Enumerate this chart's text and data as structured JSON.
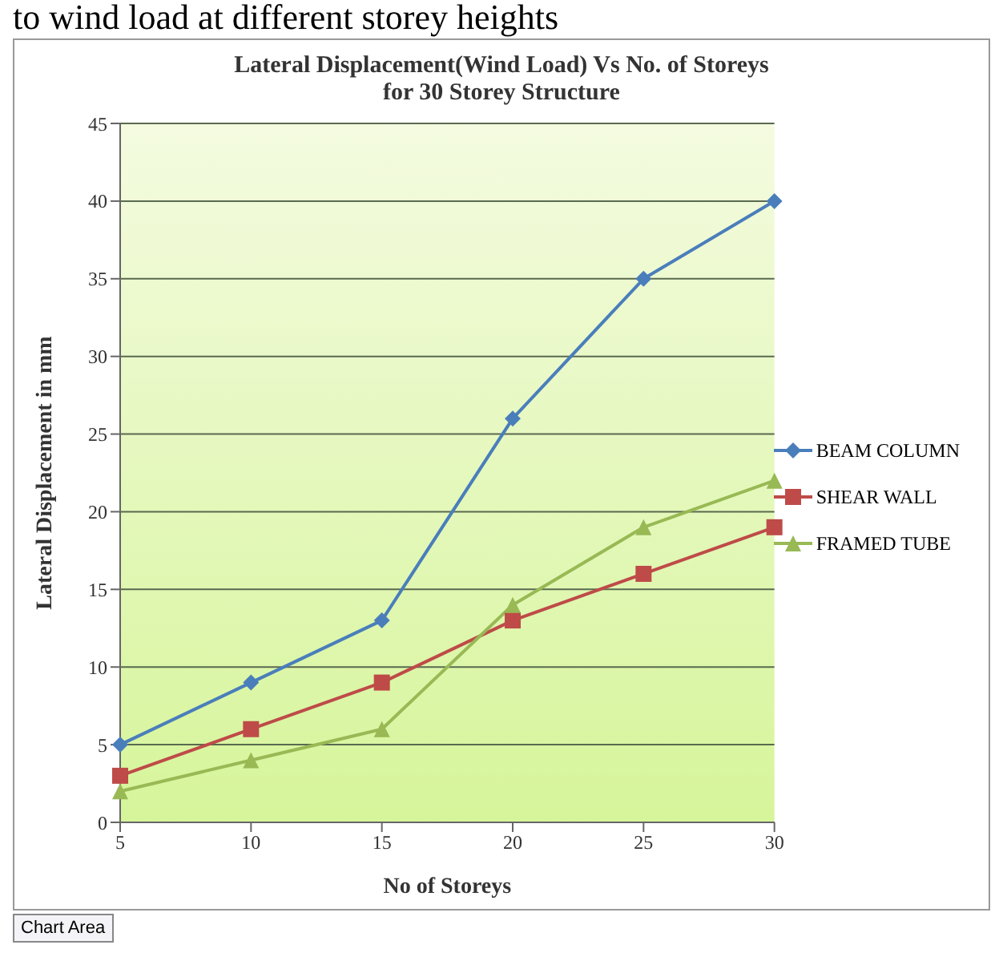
{
  "chart_data": {
    "type": "line",
    "title": "Lateral Displacement(Wind Load) Vs No. of Storeys\nfor 30 Storey Structure",
    "xlabel": "No of  Storeys",
    "ylabel": "Lateral  Displacement   in   mm",
    "annotations": [
      "to wind load at different storey heights",
      "Chart Area"
    ],
    "categories": [
      "5",
      "10",
      "15",
      "20",
      "25",
      "30"
    ],
    "series": [
      {
        "name": "BEAM COLUMN",
        "color": "#4a7ebb",
        "marker": "diamond",
        "values": [
          5,
          9,
          13,
          26,
          35,
          40
        ]
      },
      {
        "name": "SHEAR WALL",
        "color": "#be4b48",
        "marker": "square",
        "values": [
          3,
          6,
          9,
          13,
          16,
          19
        ]
      },
      {
        "name": "FRAMED TUBE",
        "color": "#98b954",
        "marker": "triangle",
        "values": [
          2,
          4,
          6,
          14,
          19,
          22
        ]
      }
    ],
    "ylim": [
      0,
      45
    ],
    "yticks": [
      0,
      5,
      10,
      15,
      20,
      25,
      30,
      35,
      40,
      45
    ],
    "grid": "y",
    "legend": "right"
  }
}
